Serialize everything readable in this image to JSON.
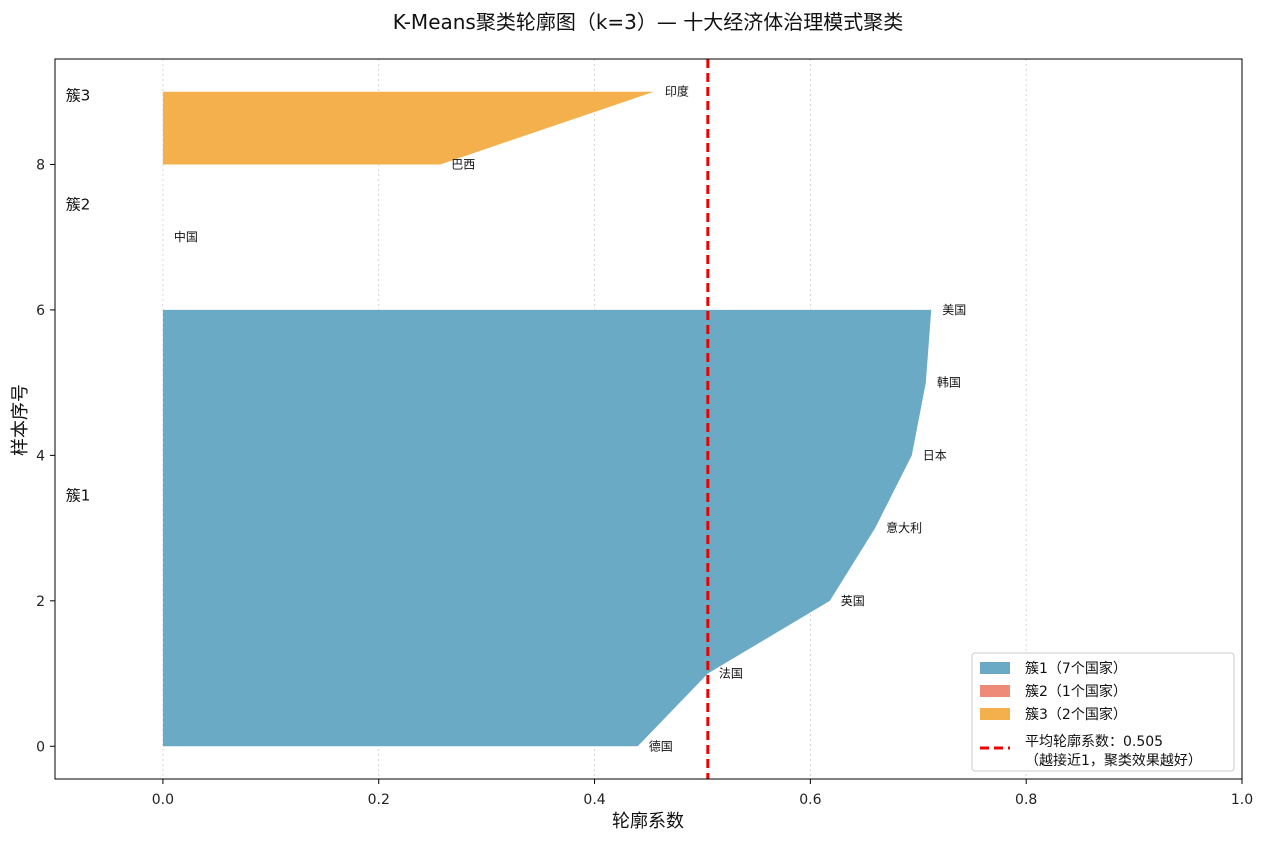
{
  "chart_data": {
    "type": "area",
    "title": "K-Means聚类轮廓图（k=3）— 十大经济体治理模式聚类",
    "xlabel": "轮廓系数",
    "ylabel": "样本序号",
    "xlim": [
      -0.1,
      1.0
    ],
    "ylim": [
      -0.45,
      9.45
    ],
    "x_ticks": [
      "0.0",
      "0.2",
      "0.4",
      "0.6",
      "0.8",
      "1.0"
    ],
    "y_ticks": [
      "0",
      "2",
      "4",
      "6",
      "8"
    ],
    "grid": "vertical dotted",
    "clusters": [
      {
        "label": "簇1",
        "color": "#6aaac4",
        "points": [
          {
            "country": "德国",
            "index": 0,
            "silhouette": 0.44
          },
          {
            "country": "法国",
            "index": 1,
            "silhouette": 0.505
          },
          {
            "country": "英国",
            "index": 2,
            "silhouette": 0.618
          },
          {
            "country": "意大利",
            "index": 3,
            "silhouette": 0.66
          },
          {
            "country": "日本",
            "index": 4,
            "silhouette": 0.694
          },
          {
            "country": "韩国",
            "index": 5,
            "silhouette": 0.707
          },
          {
            "country": "美国",
            "index": 6,
            "silhouette": 0.712
          }
        ]
      },
      {
        "label": "簇2",
        "color": "#ee8a78",
        "points": [
          {
            "country": "中国",
            "index": 7,
            "silhouette": 0.0
          }
        ]
      },
      {
        "label": "簇3",
        "color": "#f5b04e",
        "points": [
          {
            "country": "巴西",
            "index": 8,
            "silhouette": 0.257
          },
          {
            "country": "印度",
            "index": 9,
            "silhouette": 0.455
          }
        ]
      }
    ],
    "mean_silhouette": 0.505,
    "mean_line_color": "#ee0000",
    "legend": {
      "placement": "lower-right",
      "entries": [
        "簇1（7个国家）",
        "簇2（1个国家）",
        "簇3（2个国家）"
      ],
      "mean_line_label": [
        "平均轮廓系数：0.505",
        "（越接近1，聚类效果越好）"
      ]
    }
  }
}
